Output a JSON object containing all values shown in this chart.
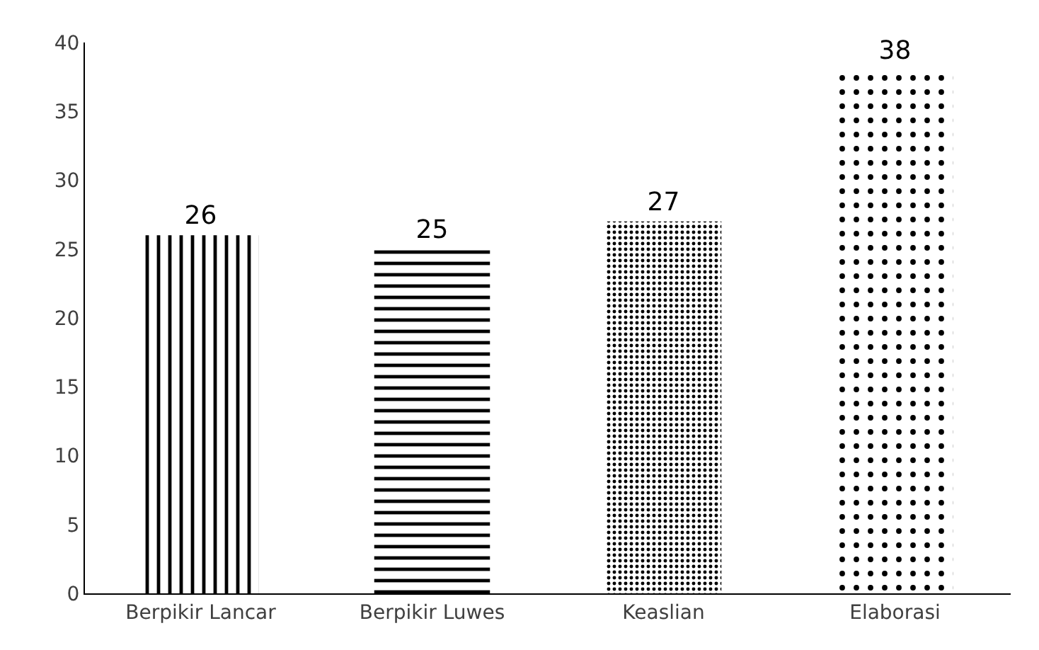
{
  "chart_data": {
    "type": "bar",
    "categories": [
      "Berpikir Lancar",
      "Berpikir Luwes",
      "Keaslian",
      "Elaborasi"
    ],
    "values": [
      26,
      25,
      27,
      38
    ],
    "color": "#000000",
    "ylim": [
      0,
      40
    ],
    "yticks": [
      0,
      5,
      10,
      15,
      20,
      25,
      30,
      35,
      40
    ],
    "grid": false,
    "data_labels": true
  }
}
